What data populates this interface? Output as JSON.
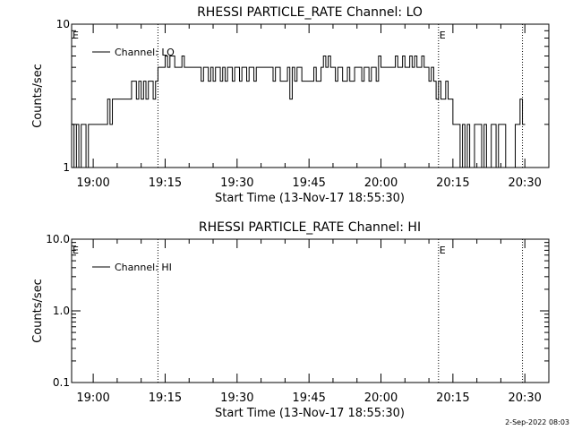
{
  "footer_date": "2-Sep-2022 08:03",
  "chart_data": [
    {
      "type": "line",
      "title": "RHESSI PARTICLE_RATE Channel: LO",
      "xlabel": "Start Time (13-Nov-17 18:55:30)",
      "ylabel": "Counts/sec",
      "y_scale": "log",
      "ylim": [
        1,
        10
      ],
      "ytick_labels": [
        "1",
        "10"
      ],
      "xlim": [
        "18:55:30",
        "20:35:00"
      ],
      "xtick_labels": [
        "19:00",
        "19:15",
        "19:30",
        "19:45",
        "20:00",
        "20:15",
        "20:30"
      ],
      "legend_entry": "Channel: LO",
      "legend_position": "top-left",
      "event_marks": [
        {
          "time": "18:55:30",
          "label": "E",
          "line": false
        },
        {
          "time": "19:13:30",
          "label": "",
          "line": true
        },
        {
          "time": "20:12:00",
          "label": "E",
          "line": true
        },
        {
          "time": "20:29:30",
          "label": "",
          "line": true
        }
      ],
      "series": [
        {
          "x": [
            "18:55:30",
            "18:56:00",
            "18:56:30",
            "18:57:00",
            "18:57:30",
            "18:58:00",
            "18:58:30",
            "18:59:00",
            "19:00:00",
            "19:01:00",
            "19:02:00",
            "19:03:00",
            "19:03:30",
            "19:04:00",
            "19:05:00",
            "19:06:00",
            "19:07:00",
            "19:08:00",
            "19:09:00",
            "19:09:30",
            "19:10:00",
            "19:10:30",
            "19:11:00",
            "19:11:30",
            "19:12:00",
            "19:12:30",
            "19:13:00",
            "19:13:30",
            "19:14:00",
            "19:14:30",
            "19:15:00",
            "19:15:30",
            "19:16:00",
            "19:16:30",
            "19:17:00",
            "19:17:30",
            "19:18:00",
            "19:18:30",
            "19:19:00",
            "19:19:30",
            "19:20:00",
            "19:20:30",
            "19:21:00",
            "19:21:30",
            "19:22:00",
            "19:22:30",
            "19:23:00",
            "19:23:30",
            "19:24:00",
            "19:24:30",
            "19:25:00",
            "19:25:30",
            "19:26:00",
            "19:26:30",
            "19:27:00",
            "19:27:30",
            "19:28:00",
            "19:28:30",
            "19:29:00",
            "19:29:30",
            "19:30:00",
            "19:30:30",
            "19:31:00",
            "19:31:30",
            "19:32:00",
            "19:32:30",
            "19:33:00",
            "19:33:30",
            "19:34:00",
            "19:34:30",
            "19:35:00",
            "19:35:30",
            "19:36:00",
            "19:36:30",
            "19:37:00",
            "19:37:30",
            "19:38:00",
            "19:38:30",
            "19:39:00",
            "19:39:30",
            "19:40:00",
            "19:40:30",
            "19:41:00",
            "19:41:30",
            "19:42:00",
            "19:42:30",
            "19:43:00",
            "19:43:30",
            "19:44:00",
            "19:44:30",
            "19:45:00",
            "19:45:30",
            "19:46:00",
            "19:46:30",
            "19:47:00",
            "19:47:30",
            "19:48:00",
            "19:48:30",
            "19:49:00",
            "19:49:30",
            "19:50:00",
            "19:50:30",
            "19:51:00",
            "19:51:30",
            "19:52:00",
            "19:52:30",
            "19:53:00",
            "19:53:30",
            "19:54:00",
            "19:54:30",
            "19:55:00",
            "19:55:30",
            "19:56:00",
            "19:56:30",
            "19:57:00",
            "19:57:30",
            "19:58:00",
            "19:58:30",
            "19:59:00",
            "19:59:30",
            "20:00:00",
            "20:00:30",
            "20:01:00",
            "20:01:30",
            "20:02:00",
            "20:02:30",
            "20:03:00",
            "20:03:30",
            "20:04:00",
            "20:04:30",
            "20:05:00",
            "20:05:30",
            "20:06:00",
            "20:06:30",
            "20:07:00",
            "20:07:30",
            "20:08:00",
            "20:08:30",
            "20:09:00",
            "20:09:30",
            "20:10:00",
            "20:10:30",
            "20:11:00",
            "20:11:30",
            "20:12:00",
            "20:12:30",
            "20:13:00",
            "20:13:30",
            "20:14:00",
            "20:14:30",
            "20:15:00",
            "20:15:30",
            "20:16:00",
            "20:16:30",
            "20:17:00",
            "20:17:30",
            "20:18:00",
            "20:18:30",
            "20:19:00",
            "20:19:30",
            "20:20:00",
            "20:20:30",
            "20:21:00",
            "20:21:30",
            "20:22:00",
            "20:22:30",
            "20:23:00",
            "20:23:30",
            "20:24:00",
            "20:24:30",
            "20:25:00",
            "20:25:30",
            "20:26:00",
            "20:26:30",
            "20:27:00",
            "20:27:30",
            "20:28:00",
            "20:28:30",
            "20:29:00",
            "20:29:30"
          ],
          "y": [
            2,
            1,
            2,
            1,
            2,
            2,
            1,
            2,
            2,
            2,
            2,
            3,
            2,
            3,
            3,
            3,
            3,
            4,
            3,
            4,
            3,
            4,
            3,
            4,
            4,
            3,
            4,
            5,
            5,
            5,
            6,
            5,
            6,
            6,
            5,
            5,
            5,
            6,
            5,
            5,
            5,
            5,
            5,
            5,
            5,
            4,
            5,
            5,
            4,
            5,
            4,
            5,
            5,
            4,
            5,
            4,
            5,
            5,
            4,
            5,
            5,
            4,
            5,
            5,
            4,
            5,
            5,
            4,
            5,
            5,
            5,
            5,
            5,
            5,
            5,
            4,
            5,
            5,
            4,
            4,
            4,
            5,
            3,
            5,
            4,
            5,
            5,
            4,
            4,
            4,
            4,
            4,
            5,
            4,
            4,
            5,
            6,
            5,
            6,
            5,
            5,
            4,
            5,
            5,
            4,
            4,
            5,
            4,
            4,
            5,
            5,
            5,
            4,
            5,
            5,
            4,
            5,
            5,
            4,
            6,
            5,
            5,
            5,
            5,
            5,
            5,
            6,
            5,
            5,
            6,
            5,
            5,
            6,
            5,
            6,
            5,
            5,
            6,
            5,
            5,
            4,
            5,
            4,
            3,
            4,
            3,
            3,
            4,
            3,
            3,
            2,
            2,
            2,
            1,
            2,
            1,
            2,
            1,
            1,
            2,
            2,
            2,
            1,
            2,
            1,
            1,
            2,
            2,
            1,
            2,
            2,
            2,
            1,
            1,
            1,
            1,
            2,
            2,
            3,
            2
          ]
        }
      ]
    },
    {
      "type": "line",
      "title": "RHESSI PARTICLE_RATE Channel: HI",
      "xlabel": "Start Time (13-Nov-17 18:55:30)",
      "ylabel": "Counts/sec",
      "y_scale": "log",
      "ylim": [
        0.1,
        10
      ],
      "ytick_labels": [
        "0.1",
        "1.0",
        "10.0"
      ],
      "xlim": [
        "18:55:30",
        "20:35:00"
      ],
      "xtick_labels": [
        "19:00",
        "19:15",
        "19:30",
        "19:45",
        "20:00",
        "20:15",
        "20:30"
      ],
      "legend_entry": "Channel: HI",
      "legend_position": "top-left",
      "event_marks": [
        {
          "time": "18:55:30",
          "label": "E",
          "line": false
        },
        {
          "time": "19:13:30",
          "label": "",
          "line": true
        },
        {
          "time": "20:12:00",
          "label": "E",
          "line": true
        },
        {
          "time": "20:29:30",
          "label": "",
          "line": true
        }
      ],
      "series": [
        {
          "x": [],
          "y": []
        }
      ]
    }
  ]
}
